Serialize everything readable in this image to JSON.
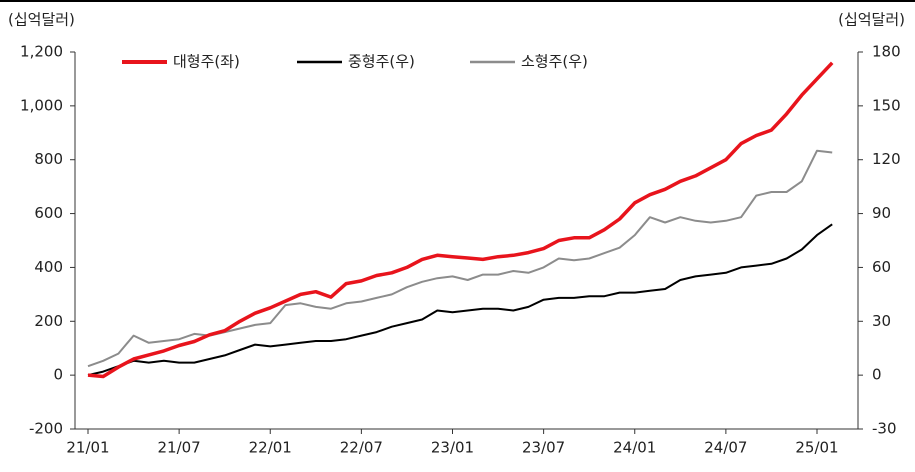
{
  "chart_data": {
    "type": "line",
    "y_label": "(십억달러)",
    "y2_label": "(십억달러)",
    "categories": [
      "21/01",
      null,
      null,
      null,
      null,
      null,
      "21/07",
      null,
      null,
      null,
      null,
      null,
      "22/01",
      null,
      null,
      null,
      null,
      null,
      "22/07",
      null,
      null,
      null,
      null,
      null,
      "23/01",
      null,
      null,
      null,
      null,
      null,
      "23/07",
      null,
      null,
      null,
      null,
      null,
      "24/01",
      null,
      null,
      null,
      null,
      null,
      "24/07",
      null,
      null,
      null,
      null,
      null,
      "25/01",
      null
    ],
    "series": [
      {
        "name": "대형주(좌)",
        "color": "#e8141c",
        "axis": "y",
        "values": [
          0,
          -5,
          30,
          60,
          75,
          90,
          110,
          125,
          150,
          165,
          200,
          230,
          250,
          275,
          300,
          310,
          290,
          340,
          350,
          370,
          380,
          400,
          430,
          445,
          440,
          435,
          430,
          440,
          445,
          455,
          470,
          500,
          510,
          510,
          540,
          580,
          640,
          670,
          690,
          720,
          740,
          770,
          800,
          860,
          890,
          910,
          970,
          1040,
          1100,
          1160
        ]
      },
      {
        "name": "중형주(우)",
        "color": "#000000",
        "axis": "y2",
        "values": [
          0,
          2,
          5,
          8,
          7,
          8,
          7,
          7,
          9,
          11,
          14,
          17,
          16,
          17,
          18,
          19,
          19,
          20,
          22,
          24,
          27,
          29,
          31,
          36,
          35,
          36,
          37,
          37,
          36,
          38,
          42,
          43,
          43,
          44,
          44,
          46,
          46,
          47,
          48,
          53,
          55,
          56,
          57,
          60,
          61,
          62,
          65,
          70,
          78,
          84
        ]
      },
      {
        "name": "소형주(우)",
        "color": "#8c8c8c",
        "axis": "y2",
        "values": [
          5,
          8,
          12,
          22,
          18,
          19,
          20,
          23,
          22,
          24,
          26,
          28,
          29,
          39,
          40,
          38,
          37,
          40,
          41,
          43,
          45,
          49,
          52,
          54,
          55,
          53,
          56,
          56,
          58,
          57,
          60,
          65,
          64,
          65,
          68,
          71,
          78,
          88,
          85,
          88,
          86,
          85,
          86,
          88,
          100,
          102,
          102,
          108,
          125,
          124
        ]
      }
    ],
    "ylim": [
      -200,
      1200
    ],
    "yticks": [
      -200,
      0,
      200,
      400,
      600,
      800,
      {
        "value": 1000,
        "label": "1,000"
      },
      {
        "value": 1200,
        "label": "1,200"
      }
    ],
    "y2lim": [
      -30,
      180
    ],
    "y2ticks": [
      -30,
      0,
      30,
      60,
      90,
      120,
      150,
      180
    ]
  }
}
